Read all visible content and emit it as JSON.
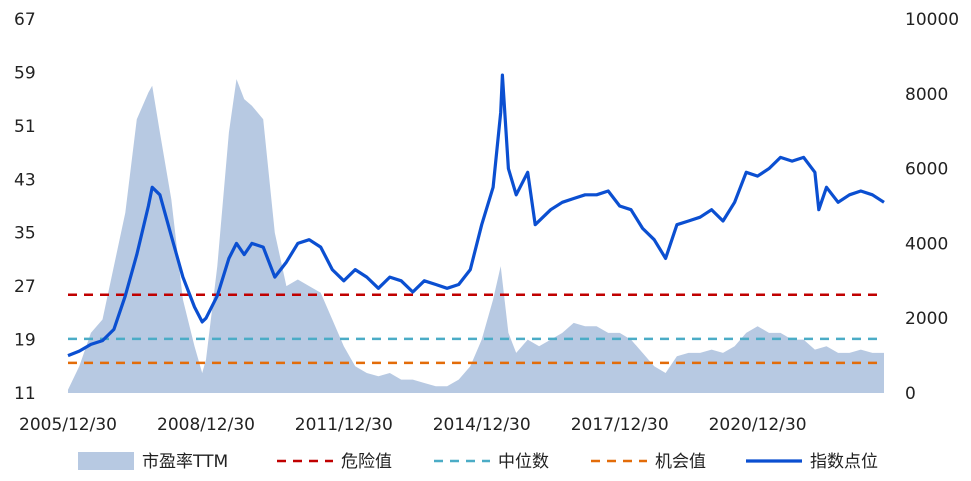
{
  "chart_data": {
    "type": "line",
    "title": "",
    "xlabel": "",
    "ylabel_left": "",
    "ylabel_right": "",
    "left_axis": {
      "min": 11,
      "max": 67,
      "ticks": [
        "67",
        "59",
        "51",
        "43",
        "35",
        "27",
        "19",
        "11"
      ]
    },
    "right_axis": {
      "min": 0,
      "max": 10000,
      "ticks": [
        "10000",
        "8000",
        "6000",
        "4000",
        "2000",
        "0"
      ]
    },
    "x_axis": {
      "range": [
        "2005-12-30",
        "2023-09-30"
      ],
      "tick_labels": [
        "2005/12/30",
        "2008/12/30",
        "2011/12/30",
        "2014/12/30",
        "2017/12/30",
        "2020/12/30"
      ],
      "tick_dates": [
        "2005-12-30",
        "2008-12-30",
        "2011-12-30",
        "2014-12-30",
        "2017-12-30",
        "2020-12-30"
      ]
    },
    "grid": false,
    "legend_position": "bottom",
    "series": [
      {
        "name": "市盈率TTM",
        "kind": "area",
        "axis": "left",
        "color": "#b7c9e2",
        "points": [
          [
            "2005-12-30",
            11.5
          ],
          [
            "2006-03-30",
            15
          ],
          [
            "2006-06-30",
            20
          ],
          [
            "2006-09-30",
            22
          ],
          [
            "2006-12-30",
            30
          ],
          [
            "2007-03-30",
            38
          ],
          [
            "2007-06-30",
            52
          ],
          [
            "2007-09-30",
            56
          ],
          [
            "2007-10-30",
            57
          ],
          [
            "2007-12-30",
            50
          ],
          [
            "2008-03-30",
            40
          ],
          [
            "2008-06-30",
            25
          ],
          [
            "2008-09-30",
            18
          ],
          [
            "2008-11-30",
            14
          ],
          [
            "2008-12-30",
            16
          ],
          [
            "2009-03-30",
            30
          ],
          [
            "2009-06-30",
            50
          ],
          [
            "2009-08-30",
            58
          ],
          [
            "2009-10-30",
            55
          ],
          [
            "2009-12-30",
            54
          ],
          [
            "2010-03-30",
            52
          ],
          [
            "2010-06-30",
            35
          ],
          [
            "2010-09-30",
            27
          ],
          [
            "2010-12-30",
            28
          ],
          [
            "2011-03-30",
            27
          ],
          [
            "2011-06-30",
            26
          ],
          [
            "2011-09-30",
            22
          ],
          [
            "2011-12-30",
            18
          ],
          [
            "2012-03-30",
            15
          ],
          [
            "2012-06-30",
            14
          ],
          [
            "2012-09-30",
            13.5
          ],
          [
            "2012-12-30",
            14
          ],
          [
            "2013-03-30",
            13
          ],
          [
            "2013-06-30",
            13
          ],
          [
            "2013-09-30",
            12.5
          ],
          [
            "2013-12-30",
            12
          ],
          [
            "2014-03-30",
            12
          ],
          [
            "2014-06-30",
            13
          ],
          [
            "2014-09-30",
            15
          ],
          [
            "2014-12-30",
            19
          ],
          [
            "2015-03-30",
            25
          ],
          [
            "2015-05-30",
            30
          ],
          [
            "2015-07-30",
            20
          ],
          [
            "2015-09-30",
            17
          ],
          [
            "2015-12-30",
            19
          ],
          [
            "2016-03-30",
            18
          ],
          [
            "2016-06-30",
            19
          ],
          [
            "2016-09-30",
            20
          ],
          [
            "2016-12-30",
            21.5
          ],
          [
            "2017-03-30",
            21
          ],
          [
            "2017-06-30",
            21
          ],
          [
            "2017-09-30",
            20
          ],
          [
            "2017-12-30",
            20
          ],
          [
            "2018-03-30",
            19
          ],
          [
            "2018-06-30",
            17
          ],
          [
            "2018-09-30",
            15
          ],
          [
            "2018-12-30",
            14
          ],
          [
            "2019-03-30",
            16.5
          ],
          [
            "2019-06-30",
            17
          ],
          [
            "2019-09-30",
            17
          ],
          [
            "2019-12-30",
            17.5
          ],
          [
            "2020-03-30",
            17
          ],
          [
            "2020-06-30",
            18
          ],
          [
            "2020-09-30",
            20
          ],
          [
            "2020-12-30",
            21
          ],
          [
            "2021-03-30",
            20
          ],
          [
            "2021-06-30",
            20
          ],
          [
            "2021-09-30",
            19
          ],
          [
            "2021-12-30",
            19
          ],
          [
            "2022-03-30",
            17.5
          ],
          [
            "2022-06-30",
            18
          ],
          [
            "2022-09-30",
            17
          ],
          [
            "2022-12-30",
            17
          ],
          [
            "2023-03-30",
            17.5
          ],
          [
            "2023-06-30",
            17
          ],
          [
            "2023-09-30",
            17
          ]
        ]
      },
      {
        "name": "危险值",
        "kind": "dashed",
        "axis": "left",
        "color": "#c00000",
        "value": 25.7
      },
      {
        "name": "中位数",
        "kind": "dashed",
        "axis": "left",
        "color": "#4bacc6",
        "value": 19.1
      },
      {
        "name": "机会值",
        "kind": "dashed",
        "axis": "left",
        "color": "#e36c09",
        "value": 15.5
      },
      {
        "name": "指数点位",
        "kind": "line",
        "axis": "right",
        "color": "#0b4fd1",
        "points": [
          [
            "2005-12-30",
            1000
          ],
          [
            "2006-03-30",
            1120
          ],
          [
            "2006-06-30",
            1300
          ],
          [
            "2006-09-30",
            1400
          ],
          [
            "2006-12-30",
            1700
          ],
          [
            "2007-03-30",
            2600
          ],
          [
            "2007-06-30",
            3700
          ],
          [
            "2007-09-30",
            5000
          ],
          [
            "2007-10-30",
            5500
          ],
          [
            "2007-12-30",
            5300
          ],
          [
            "2008-03-30",
            4200
          ],
          [
            "2008-06-30",
            3100
          ],
          [
            "2008-09-30",
            2300
          ],
          [
            "2008-11-30",
            1900
          ],
          [
            "2008-12-30",
            2000
          ],
          [
            "2009-03-30",
            2600
          ],
          [
            "2009-06-30",
            3600
          ],
          [
            "2009-08-30",
            4000
          ],
          [
            "2009-10-30",
            3700
          ],
          [
            "2009-12-30",
            4000
          ],
          [
            "2010-03-30",
            3900
          ],
          [
            "2010-06-30",
            3100
          ],
          [
            "2010-09-30",
            3500
          ],
          [
            "2010-12-30",
            4000
          ],
          [
            "2011-03-30",
            4100
          ],
          [
            "2011-06-30",
            3900
          ],
          [
            "2011-09-30",
            3300
          ],
          [
            "2011-12-30",
            3000
          ],
          [
            "2012-03-30",
            3300
          ],
          [
            "2012-06-30",
            3100
          ],
          [
            "2012-09-30",
            2800
          ],
          [
            "2012-12-30",
            3100
          ],
          [
            "2013-03-30",
            3000
          ],
          [
            "2013-06-30",
            2700
          ],
          [
            "2013-09-30",
            3000
          ],
          [
            "2013-12-30",
            2900
          ],
          [
            "2014-03-30",
            2800
          ],
          [
            "2014-06-30",
            2900
          ],
          [
            "2014-09-30",
            3300
          ],
          [
            "2014-12-30",
            4500
          ],
          [
            "2015-03-30",
            5500
          ],
          [
            "2015-05-30",
            7500
          ],
          [
            "2015-06-12",
            8500
          ],
          [
            "2015-07-30",
            6000
          ],
          [
            "2015-09-30",
            5300
          ],
          [
            "2015-12-30",
            5900
          ],
          [
            "2016-02-28",
            4500
          ],
          [
            "2016-06-30",
            4900
          ],
          [
            "2016-09-30",
            5100
          ],
          [
            "2016-12-30",
            5200
          ],
          [
            "2017-03-30",
            5300
          ],
          [
            "2017-06-30",
            5300
          ],
          [
            "2017-09-30",
            5400
          ],
          [
            "2017-12-30",
            5000
          ],
          [
            "2018-03-30",
            4900
          ],
          [
            "2018-06-30",
            4400
          ],
          [
            "2018-09-30",
            4100
          ],
          [
            "2018-12-30",
            3600
          ],
          [
            "2019-03-30",
            4500
          ],
          [
            "2019-06-30",
            4600
          ],
          [
            "2019-09-30",
            4700
          ],
          [
            "2019-12-30",
            4900
          ],
          [
            "2020-03-30",
            4600
          ],
          [
            "2020-06-30",
            5100
          ],
          [
            "2020-09-30",
            5900
          ],
          [
            "2020-12-30",
            5800
          ],
          [
            "2021-03-30",
            6000
          ],
          [
            "2021-06-30",
            6300
          ],
          [
            "2021-09-30",
            6200
          ],
          [
            "2021-12-30",
            6300
          ],
          [
            "2022-03-30",
            5900
          ],
          [
            "2022-04-30",
            4900
          ],
          [
            "2022-06-30",
            5500
          ],
          [
            "2022-09-30",
            5100
          ],
          [
            "2022-12-30",
            5300
          ],
          [
            "2023-03-30",
            5400
          ],
          [
            "2023-06-30",
            5300
          ],
          [
            "2023-09-30",
            5100
          ]
        ]
      }
    ]
  }
}
